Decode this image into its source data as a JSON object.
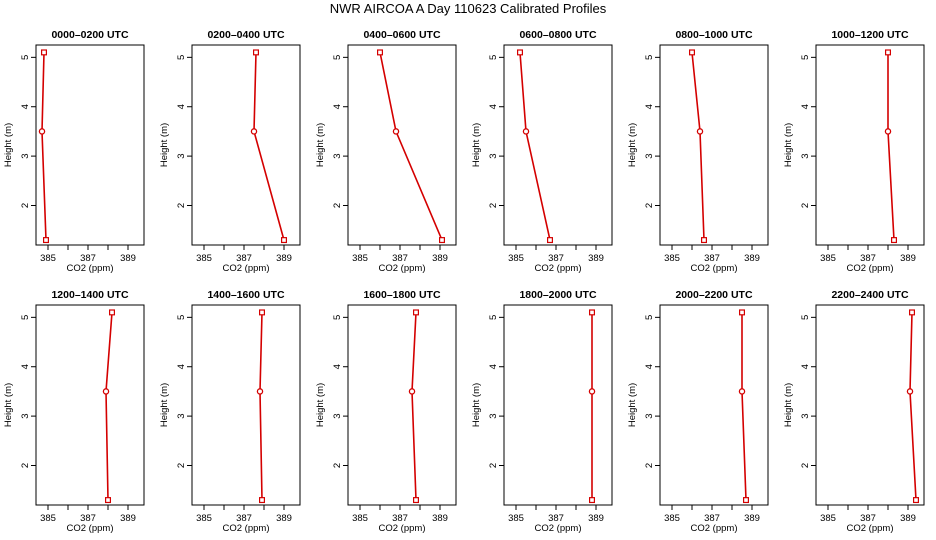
{
  "title": "NWR AIRCOA A  Day 110623  Calibrated Profiles",
  "chart_data": {
    "type": "line",
    "xlabel": "CO2 (ppm)",
    "ylabel": "Height (m)",
    "xlim": [
      384.4,
      389.8
    ],
    "ylim": [
      1.2,
      5.25
    ],
    "xticks": [
      385,
      386,
      387,
      388,
      389
    ],
    "xtick_labels": [
      "385",
      "",
      "387",
      "",
      "389"
    ],
    "yticks": [
      2,
      3,
      4,
      5
    ],
    "heights": [
      1.3,
      3.5,
      5.1
    ],
    "series_color": "#d40000",
    "panels": [
      {
        "title": "0000–0200 UTC",
        "co2": [
          384.9,
          384.7,
          384.8
        ]
      },
      {
        "title": "0200–0400 UTC",
        "co2": [
          389.0,
          387.5,
          387.6
        ]
      },
      {
        "title": "0400–0600 UTC",
        "co2": [
          389.1,
          386.8,
          386.0
        ]
      },
      {
        "title": "0600–0800 UTC",
        "co2": [
          386.7,
          385.5,
          385.2
        ]
      },
      {
        "title": "0800–1000 UTC",
        "co2": [
          386.6,
          386.4,
          386.0
        ]
      },
      {
        "title": "1000–1200 UTC",
        "co2": [
          388.3,
          388.0,
          388.0
        ]
      },
      {
        "title": "1200–1400 UTC",
        "co2": [
          388.0,
          387.9,
          388.2
        ]
      },
      {
        "title": "1400–1600 UTC",
        "co2": [
          387.9,
          387.8,
          387.9
        ]
      },
      {
        "title": "1600–1800 UTC",
        "co2": [
          387.8,
          387.6,
          387.8
        ]
      },
      {
        "title": "1800–2000 UTC",
        "co2": [
          388.8,
          388.8,
          388.8
        ]
      },
      {
        "title": "2000–2200 UTC",
        "co2": [
          388.7,
          388.5,
          388.5
        ]
      },
      {
        "title": "2200–2400 UTC",
        "co2": [
          389.4,
          389.1,
          389.2
        ]
      }
    ]
  }
}
